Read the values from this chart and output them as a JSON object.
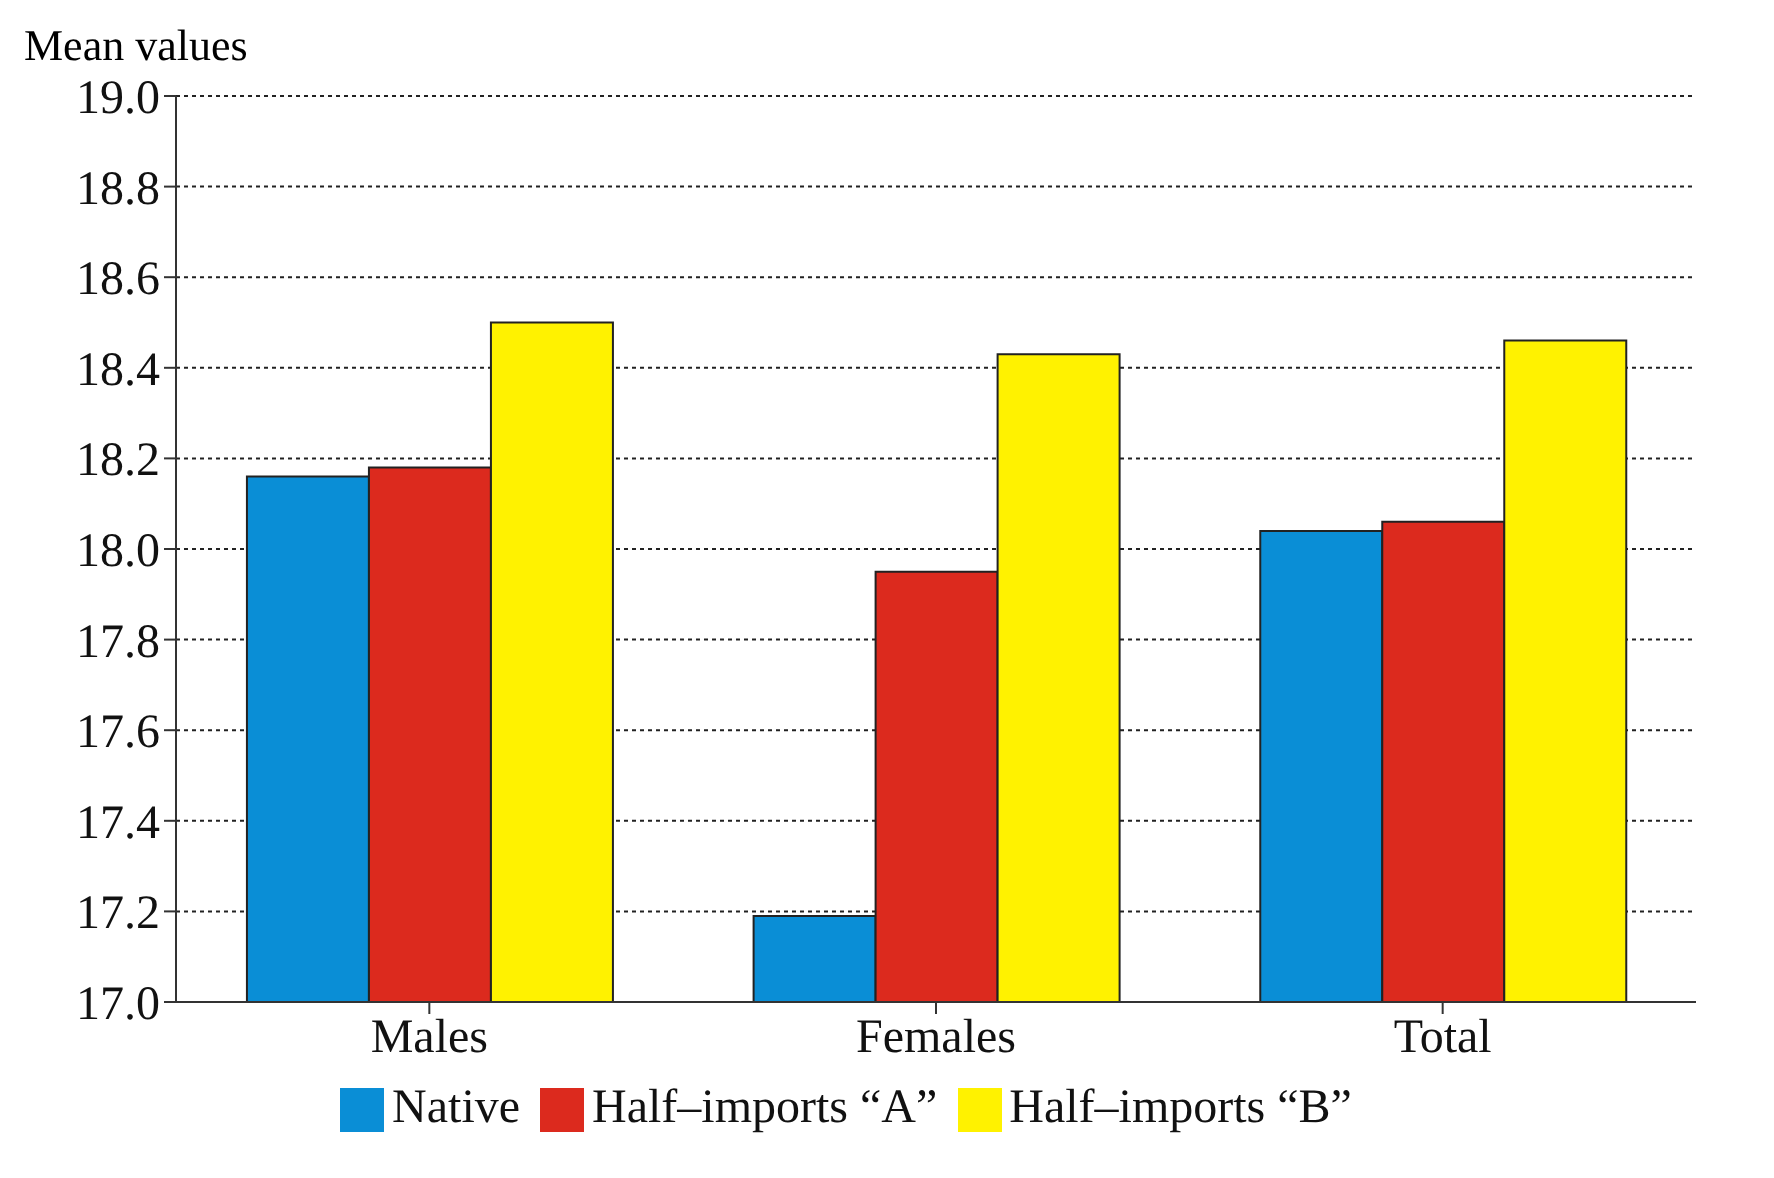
{
  "chart_data": {
    "type": "bar",
    "ylabel": "Mean values",
    "categories": [
      "Males",
      "Females",
      "Total"
    ],
    "series": [
      {
        "name": "Native",
        "color": "#0a8ed6",
        "values": [
          18.16,
          17.19,
          18.04
        ]
      },
      {
        "name": "Half–imports “A”",
        "color": "#dc2a1e",
        "values": [
          18.18,
          17.95,
          18.06
        ]
      },
      {
        "name": "Half–imports “B”",
        "color": "#fff200",
        "values": [
          18.5,
          18.43,
          18.46
        ]
      }
    ],
    "ylim": [
      17.0,
      19.0
    ],
    "yticks": [
      {
        "value": 17,
        "label": "17.0"
      },
      {
        "value": 17.2,
        "label": "17.2"
      },
      {
        "value": 17.4,
        "label": "17.4"
      },
      {
        "value": 17.6,
        "label": "17.6"
      },
      {
        "value": 17.8,
        "label": "17.8"
      },
      {
        "value": 18,
        "label": "18.0"
      },
      {
        "value": 18.2,
        "label": "18.2"
      },
      {
        "value": 18.4,
        "label": "18.4"
      },
      {
        "value": 18.6,
        "label": "18.6"
      },
      {
        "value": 18.8,
        "label": "18.8"
      },
      {
        "value": 19,
        "label": "19.0"
      }
    ],
    "grid": "y",
    "legend": "bottom"
  }
}
